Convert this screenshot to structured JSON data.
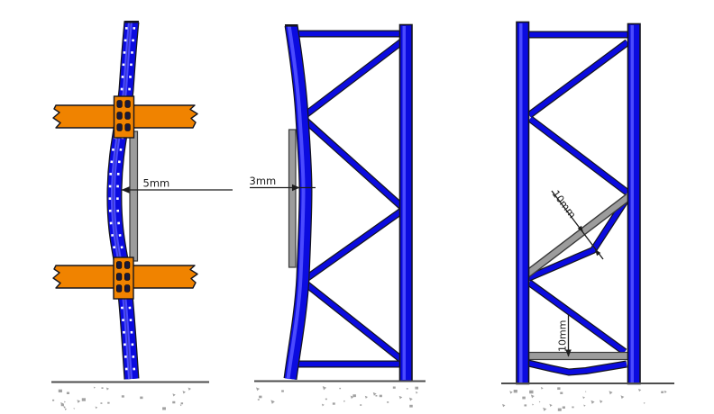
{
  "page": {
    "background": "#ffffff"
  },
  "colors": {
    "background": "#ffffff",
    "upright_blue": "#0b0bdf",
    "upright_stripe": "#4a4aff",
    "outline": "#15151e",
    "beam_orange": "#f08300",
    "connector_slot": "#19193a",
    "straightedge_gray": "#9c9c9c",
    "straightedge_outline": "#3a3a3a",
    "dimension_ink": "#1c1c1c",
    "ground_line": "#4d4d4d",
    "ground_speckle": "#a2a2a2",
    "perforation_white": "#ffffff"
  },
  "figures": [
    {
      "name": "upright-front-view-bend",
      "measurement_label": "5mm"
    },
    {
      "name": "frame-side-view-bend",
      "measurement_label": "3mm"
    },
    {
      "name": "frame-damaged-braces",
      "diagonal_measurement_label": "10mm",
      "bottom_measurement_label": "10mm"
    }
  ]
}
